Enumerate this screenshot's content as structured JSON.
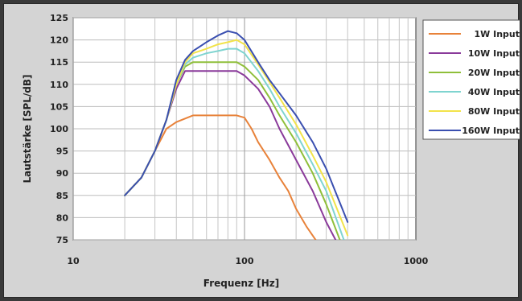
{
  "chart_data": {
    "type": "line",
    "title": "",
    "xlabel": "Frequenz [Hz]",
    "ylabel": "Lautstärke [SPL/dB]",
    "xscale": "log",
    "xlim": [
      10,
      1000
    ],
    "ylim": [
      75,
      125
    ],
    "xticks": [
      10,
      100,
      1000
    ],
    "xtick_labels": [
      "10",
      "100",
      "1000"
    ],
    "yticks": [
      75,
      80,
      85,
      90,
      95,
      100,
      105,
      110,
      115,
      120,
      125
    ],
    "ytick_labels": [
      "75",
      "80",
      "85",
      "90",
      "95",
      "100",
      "105",
      "110",
      "115",
      "120",
      "125"
    ],
    "grid": true,
    "legend": "right",
    "series": [
      {
        "name": "1W Input",
        "color": "#e8823a",
        "x": [
          20,
          25,
          30,
          35,
          40,
          50,
          60,
          70,
          80,
          90,
          100,
          110,
          120,
          140,
          160,
          180,
          200,
          230,
          260
        ],
        "y": [
          85,
          89,
          95,
          100,
          101.5,
          103,
          103,
          103,
          103,
          103,
          102.5,
          100,
          97,
          93,
          89,
          86,
          82,
          78,
          75
        ]
      },
      {
        "name": "10W Input",
        "color": "#8a3a9a",
        "x": [
          20,
          25,
          30,
          35,
          40,
          45,
          50,
          60,
          70,
          80,
          90,
          100,
          120,
          140,
          160,
          200,
          250,
          300,
          340
        ],
        "y": [
          85,
          89,
          95,
          102,
          109,
          113,
          113,
          113,
          113,
          113,
          113,
          112,
          109,
          105,
          100,
          93,
          86,
          79,
          75
        ]
      },
      {
        "name": "20W Input",
        "color": "#8fbf3a",
        "x": [
          20,
          25,
          30,
          35,
          40,
          45,
          50,
          60,
          70,
          80,
          90,
          100,
          120,
          140,
          160,
          200,
          250,
          300,
          360
        ],
        "y": [
          85,
          89,
          95,
          102,
          110,
          114,
          115,
          115,
          115,
          115,
          115,
          114,
          111,
          107,
          103,
          97,
          90,
          83,
          75
        ]
      },
      {
        "name": "40W Input",
        "color": "#7fd4d0",
        "x": [
          20,
          25,
          30,
          35,
          40,
          45,
          50,
          60,
          70,
          80,
          90,
          100,
          120,
          140,
          160,
          200,
          250,
          300,
          380
        ],
        "y": [
          85,
          89,
          95,
          102,
          110,
          114.5,
          116,
          117,
          117.5,
          118,
          118,
          117,
          113,
          109,
          105,
          99,
          92,
          86,
          75
        ]
      },
      {
        "name": "80W Input",
        "color": "#f2e34a",
        "x": [
          20,
          25,
          30,
          35,
          40,
          45,
          50,
          60,
          70,
          80,
          90,
          100,
          120,
          140,
          160,
          200,
          250,
          300,
          400
        ],
        "y": [
          85,
          89,
          95,
          102,
          110,
          115,
          117,
          118,
          119,
          119.5,
          120,
          119,
          114.5,
          110.5,
          107,
          101,
          94,
          88,
          76
        ]
      },
      {
        "name": "160W Input",
        "color": "#3a4fb0",
        "x": [
          20,
          25,
          30,
          35,
          40,
          45,
          50,
          60,
          70,
          80,
          90,
          100,
          120,
          140,
          160,
          200,
          250,
          300,
          400
        ],
        "y": [
          85,
          89,
          95,
          102,
          111,
          115.5,
          117.5,
          119.5,
          121,
          122,
          121.5,
          120,
          115,
          111,
          108,
          103,
          97,
          91,
          79
        ]
      }
    ]
  }
}
